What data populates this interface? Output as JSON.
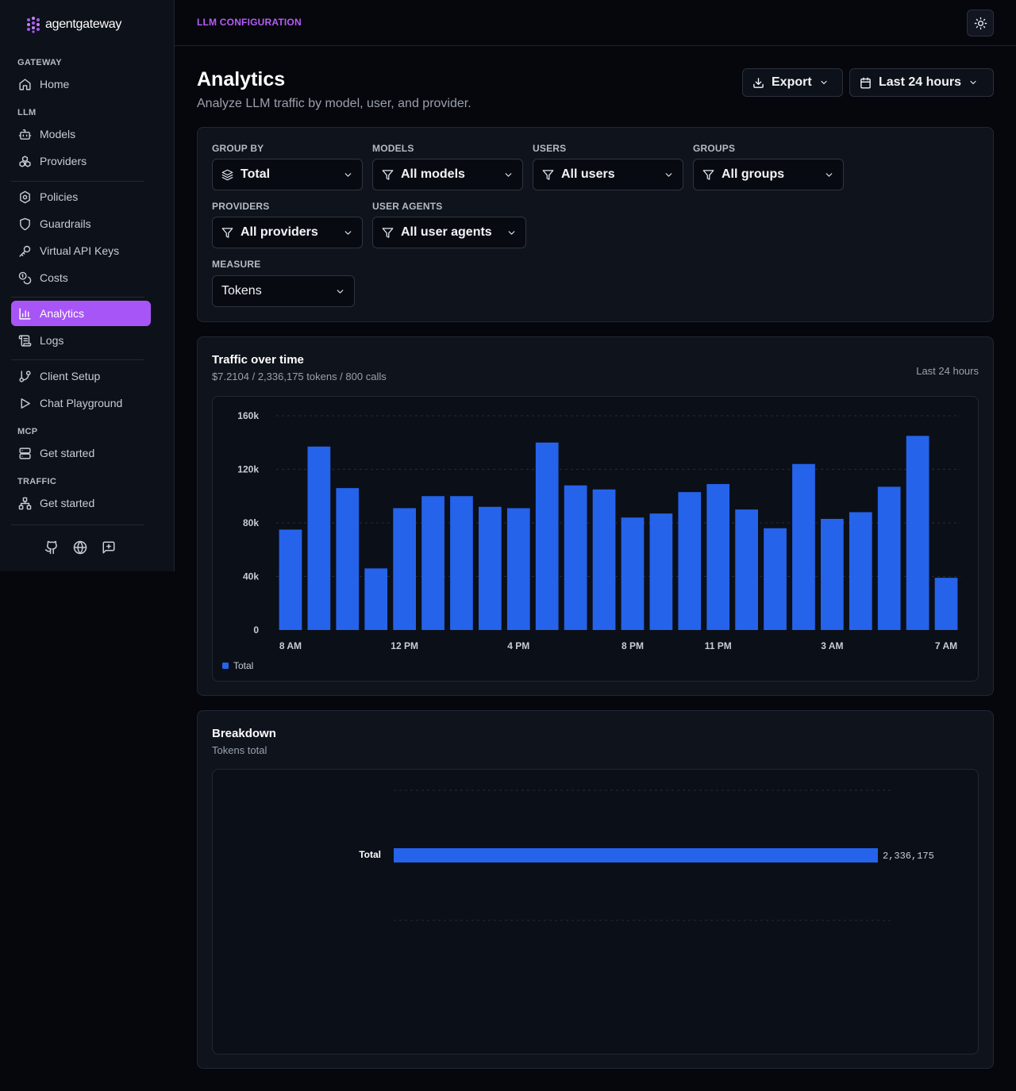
{
  "brand": {
    "name": "agentgateway",
    "accent": "#a855f7"
  },
  "breadcrumb": "LLM CONFIGURATION",
  "sidebar": {
    "sections": {
      "gateway": "GATEWAY",
      "llm": "LLM",
      "mcp": "MCP",
      "traffic": "TRAFFIC"
    },
    "items": {
      "home": {
        "label": "Home",
        "icon": "home-icon"
      },
      "models": {
        "label": "Models",
        "icon": "bot-icon"
      },
      "providers": {
        "label": "Providers",
        "icon": "boxes-icon"
      },
      "policies": {
        "label": "Policies",
        "icon": "policy-icon"
      },
      "guardrails": {
        "label": "Guardrails",
        "icon": "shield-icon"
      },
      "virtual_keys": {
        "label": "Virtual API Keys",
        "icon": "key-icon"
      },
      "costs": {
        "label": "Costs",
        "icon": "coins-icon"
      },
      "analytics": {
        "label": "Analytics",
        "icon": "bar-chart-icon",
        "active": true
      },
      "logs": {
        "label": "Logs",
        "icon": "scroll-icon"
      },
      "client_setup": {
        "label": "Client Setup",
        "icon": "code-icon"
      },
      "chat_playground": {
        "label": "Chat Playground",
        "icon": "play-icon"
      },
      "mcp_get_started": {
        "label": "Get started",
        "icon": "server-icon"
      },
      "traffic_get_started": {
        "label": "Get started",
        "icon": "network-icon"
      }
    },
    "footer_icons": [
      "github-icon",
      "globe-icon",
      "feedback-icon"
    ]
  },
  "header": {
    "title": "Analytics",
    "subtitle": "Analyze LLM traffic by model, user, and provider.",
    "export_label": "Export",
    "range_label": "Last 24 hours"
  },
  "filters": {
    "group_by": {
      "label": "GROUP BY",
      "value": "Total"
    },
    "models": {
      "label": "MODELS",
      "value": "All models"
    },
    "users": {
      "label": "USERS",
      "value": "All users"
    },
    "groups": {
      "label": "GROUPS",
      "value": "All groups"
    },
    "providers": {
      "label": "PROVIDERS",
      "value": "All providers"
    },
    "user_agents": {
      "label": "USER AGENTS",
      "value": "All user agents"
    },
    "measure": {
      "label": "MEASURE",
      "value": "Tokens"
    }
  },
  "traffic_card": {
    "title": "Traffic over time",
    "summary": "$7.2104 / 2,336,175 tokens / 800 calls",
    "range": "Last 24 hours"
  },
  "breakdown_card": {
    "title": "Breakdown",
    "subtitle": "Tokens total"
  },
  "chart_data": [
    {
      "type": "bar",
      "x_tick_labels": [
        "8 AM",
        "12 PM",
        "4 PM",
        "8 PM",
        "11 PM",
        "3 AM",
        "7 AM"
      ],
      "x_tick_index": [
        0,
        4,
        8,
        12,
        15,
        19,
        23
      ],
      "y_tick_labels": [
        "0",
        "40k",
        "80k",
        "120k",
        "160k"
      ],
      "ylim": [
        0,
        160000
      ],
      "series": [
        {
          "name": "Total",
          "color": "#2563eb",
          "values": [
            75000,
            137000,
            106000,
            46000,
            91000,
            100000,
            100000,
            92000,
            91000,
            140000,
            108000,
            105000,
            84000,
            87000,
            103000,
            109000,
            90000,
            76000,
            124000,
            83000,
            88000,
            107000,
            145000,
            39000
          ]
        }
      ],
      "legend": "bottom-left",
      "grid": true
    },
    {
      "type": "bar",
      "orientation": "horizontal",
      "categories": [
        "Total"
      ],
      "values": [
        2336175
      ],
      "value_labels": [
        "2,336,175"
      ],
      "color": "#2563eb"
    }
  ]
}
